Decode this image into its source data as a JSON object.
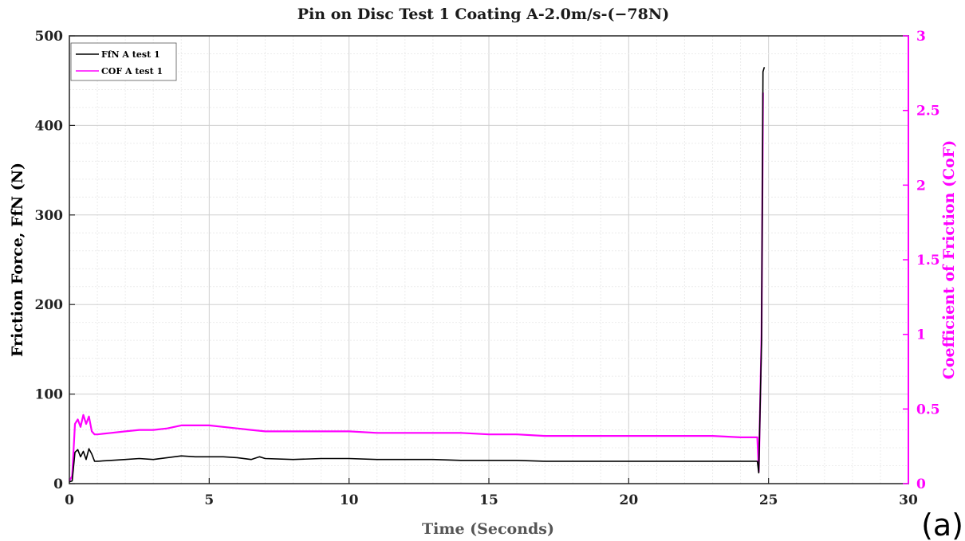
{
  "chart_data": {
    "type": "line",
    "title": "Pin on Disc Test 1 Coating A-2.0m/s-(−78N)",
    "xlabel": "Time (Seconds)",
    "ylabel": "Friction Force, FfN (N)",
    "y2label": "Coefficient of Friction (CoF)",
    "xlim": [
      0,
      30
    ],
    "ylim": [
      0,
      500
    ],
    "y2lim": [
      0,
      3
    ],
    "x_ticks": [
      "0",
      "5",
      "10",
      "15",
      "20",
      "25",
      "30"
    ],
    "y_ticks": [
      "0",
      "100",
      "200",
      "300",
      "400",
      "500"
    ],
    "y2_ticks": [
      "0",
      "0.5",
      "1",
      "1.5",
      "2",
      "2.5",
      "3"
    ],
    "grid": true,
    "legend_position": "top-left",
    "panel_label": "(a)",
    "colors": {
      "ffn": "#000000",
      "cof": "#ff00ff",
      "right_axis": "#ff00ff"
    },
    "series": [
      {
        "name": "FfN A test 1",
        "axis": "left",
        "x": [
          0,
          0.1,
          0.2,
          0.3,
          0.4,
          0.5,
          0.6,
          0.7,
          0.8,
          0.9,
          1.0,
          1.5,
          2,
          2.5,
          3,
          3.5,
          4,
          4.5,
          5,
          5.5,
          6,
          6.5,
          6.8,
          7,
          8,
          9,
          10,
          11,
          12,
          13,
          14,
          15,
          16,
          17,
          18,
          19,
          20,
          21,
          22,
          23,
          24,
          24.6,
          24.65,
          24.75,
          24.8,
          24.85
        ],
        "values": [
          2,
          3,
          35,
          38,
          30,
          36,
          27,
          39,
          33,
          25,
          25,
          26,
          27,
          28,
          27,
          29,
          31,
          30,
          30,
          30,
          29,
          27,
          30,
          28,
          27,
          28,
          28,
          27,
          27,
          27,
          26,
          26,
          26,
          25,
          25,
          25,
          25,
          25,
          25,
          25,
          25,
          25,
          12,
          160,
          460,
          465
        ]
      },
      {
        "name": "COF A test 1",
        "axis": "right",
        "x": [
          0,
          0.1,
          0.2,
          0.3,
          0.4,
          0.5,
          0.6,
          0.7,
          0.8,
          0.9,
          1.0,
          1.5,
          2,
          2.5,
          3,
          3.5,
          4,
          4.5,
          5,
          5.5,
          6,
          6.5,
          7,
          8,
          9,
          10,
          11,
          12,
          13,
          14,
          15,
          16,
          17,
          18,
          19,
          20,
          21,
          22,
          23,
          24,
          24.6,
          24.65,
          24.75,
          24.8
        ],
        "values": [
          0.02,
          0.05,
          0.4,
          0.43,
          0.38,
          0.46,
          0.4,
          0.45,
          0.35,
          0.33,
          0.33,
          0.34,
          0.35,
          0.36,
          0.36,
          0.37,
          0.39,
          0.39,
          0.39,
          0.38,
          0.37,
          0.36,
          0.35,
          0.35,
          0.35,
          0.35,
          0.34,
          0.34,
          0.34,
          0.34,
          0.33,
          0.33,
          0.32,
          0.32,
          0.32,
          0.32,
          0.32,
          0.32,
          0.32,
          0.31,
          0.31,
          0.08,
          1.0,
          2.62
        ]
      }
    ]
  }
}
